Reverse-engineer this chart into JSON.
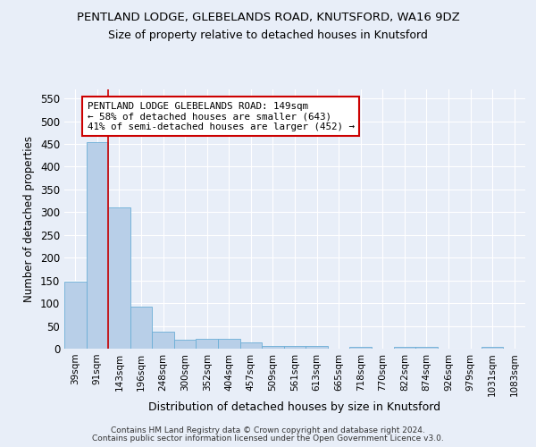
{
  "title": "PENTLAND LODGE, GLEBELANDS ROAD, KNUTSFORD, WA16 9DZ",
  "subtitle": "Size of property relative to detached houses in Knutsford",
  "xlabel": "Distribution of detached houses by size in Knutsford",
  "ylabel": "Number of detached properties",
  "bar_labels": [
    "39sqm",
    "91sqm",
    "143sqm",
    "196sqm",
    "248sqm",
    "300sqm",
    "352sqm",
    "404sqm",
    "457sqm",
    "509sqm",
    "561sqm",
    "613sqm",
    "665sqm",
    "718sqm",
    "770sqm",
    "822sqm",
    "874sqm",
    "926sqm",
    "979sqm",
    "1031sqm",
    "1083sqm"
  ],
  "bar_values": [
    148,
    455,
    310,
    93,
    37,
    20,
    21,
    21,
    13,
    6,
    6,
    5,
    0,
    3,
    0,
    3,
    3,
    0,
    0,
    3,
    0
  ],
  "bar_color": "#b8cfe8",
  "bar_edge_color": "#6baed6",
  "red_line_index": 2,
  "annotation_text": "PENTLAND LODGE GLEBELANDS ROAD: 149sqm\n← 58% of detached houses are smaller (643)\n41% of semi-detached houses are larger (452) →",
  "annotation_box_color": "#ffffff",
  "annotation_border_color": "#cc0000",
  "red_line_color": "#cc0000",
  "ylim": [
    0,
    570
  ],
  "yticks": [
    0,
    50,
    100,
    150,
    200,
    250,
    300,
    350,
    400,
    450,
    500,
    550
  ],
  "background_color": "#e8eef8",
  "grid_color": "#ffffff",
  "footer_line1": "Contains HM Land Registry data © Crown copyright and database right 2024.",
  "footer_line2": "Contains public sector information licensed under the Open Government Licence v3.0."
}
